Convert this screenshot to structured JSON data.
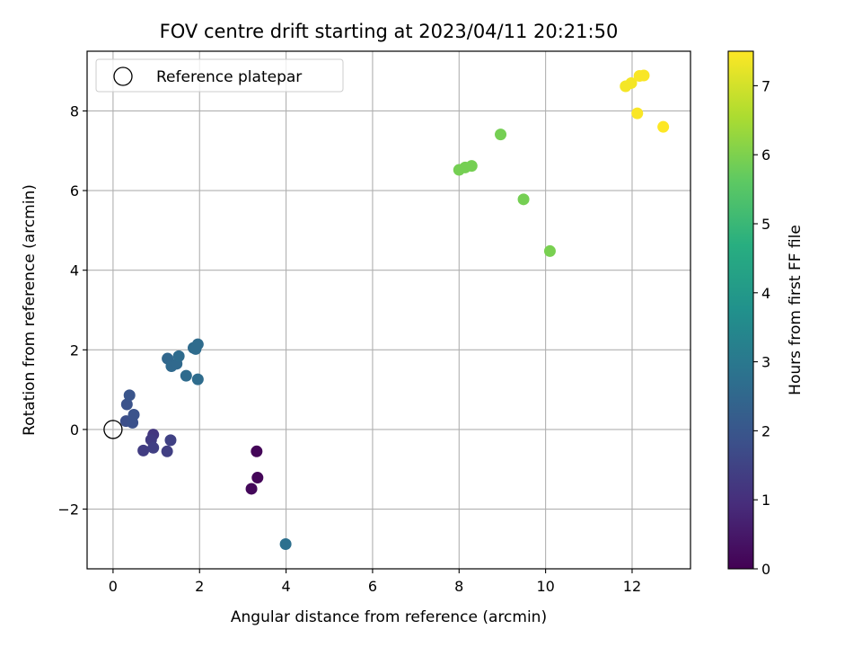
{
  "chart_data": {
    "type": "scatter",
    "title": "FOV centre drift starting at 2023/04/11 20:21:50",
    "xlabel": "Angular distance from reference (arcmin)",
    "ylabel": "Rotation from reference (arcmin)",
    "xlim": [
      -0.6,
      13.35
    ],
    "ylim": [
      -3.5,
      9.5
    ],
    "xticks": [
      0,
      2,
      4,
      6,
      8,
      10,
      12
    ],
    "yticks": [
      -2,
      0,
      2,
      4,
      6,
      8
    ],
    "xtick_labels": [
      "0",
      "2",
      "4",
      "6",
      "8",
      "10",
      "12"
    ],
    "ytick_labels": [
      "−2",
      "0",
      "2",
      "4",
      "6",
      "8"
    ],
    "grid": true,
    "legend": {
      "placement": "top-left",
      "entries": [
        "Reference platepar"
      ]
    },
    "reference_point": {
      "x": 0,
      "y": 0
    },
    "colorbar": {
      "label": "Hours from first FF file",
      "colormap": "viridis",
      "range": [
        0,
        7.5
      ],
      "ticks": [
        0,
        1,
        2,
        3,
        4,
        5,
        6,
        7
      ],
      "tick_labels": [
        "0",
        "1",
        "2",
        "3",
        "4",
        "5",
        "6",
        "7"
      ]
    },
    "points": [
      {
        "x": 3.32,
        "y": -0.55,
        "c": 0.1
      },
      {
        "x": 3.34,
        "y": -1.21,
        "c": 0.1
      },
      {
        "x": 3.2,
        "y": -1.49,
        "c": 0.15
      },
      {
        "x": 0.93,
        "y": -0.13,
        "c": 1.2
      },
      {
        "x": 0.88,
        "y": -0.26,
        "c": 1.3
      },
      {
        "x": 0.7,
        "y": -0.53,
        "c": 1.35
      },
      {
        "x": 0.93,
        "y": -0.46,
        "c": 1.4
      },
      {
        "x": 1.25,
        "y": -0.55,
        "c": 1.4
      },
      {
        "x": 1.33,
        "y": -0.27,
        "c": 1.45
      },
      {
        "x": 0.3,
        "y": 0.21,
        "c": 1.8
      },
      {
        "x": 0.45,
        "y": 0.17,
        "c": 1.85
      },
      {
        "x": 0.48,
        "y": 0.37,
        "c": 1.9
      },
      {
        "x": 0.32,
        "y": 0.63,
        "c": 1.9
      },
      {
        "x": 0.38,
        "y": 0.86,
        "c": 1.95
      },
      {
        "x": 1.26,
        "y": 1.78,
        "c": 2.5
      },
      {
        "x": 1.35,
        "y": 1.59,
        "c": 2.55
      },
      {
        "x": 1.47,
        "y": 1.65,
        "c": 2.55
      },
      {
        "x": 1.52,
        "y": 1.84,
        "c": 2.6
      },
      {
        "x": 1.69,
        "y": 1.35,
        "c": 2.6
      },
      {
        "x": 1.86,
        "y": 2.05,
        "c": 2.6
      },
      {
        "x": 1.91,
        "y": 2.02,
        "c": 2.65
      },
      {
        "x": 1.96,
        "y": 2.14,
        "c": 2.65
      },
      {
        "x": 1.96,
        "y": 1.26,
        "c": 2.65
      },
      {
        "x": 3.99,
        "y": -2.88,
        "c": 2.75
      },
      {
        "x": 8.0,
        "y": 6.52,
        "c": 5.9
      },
      {
        "x": 8.14,
        "y": 6.58,
        "c": 5.9
      },
      {
        "x": 8.29,
        "y": 6.62,
        "c": 5.9
      },
      {
        "x": 8.96,
        "y": 7.41,
        "c": 5.9
      },
      {
        "x": 9.49,
        "y": 5.78,
        "c": 5.9
      },
      {
        "x": 10.1,
        "y": 4.48,
        "c": 5.95
      },
      {
        "x": 11.85,
        "y": 8.62,
        "c": 7.4
      },
      {
        "x": 11.98,
        "y": 8.7,
        "c": 7.4
      },
      {
        "x": 12.17,
        "y": 8.88,
        "c": 7.45
      },
      {
        "x": 12.27,
        "y": 8.89,
        "c": 7.45
      },
      {
        "x": 12.12,
        "y": 7.94,
        "c": 7.45
      },
      {
        "x": 12.72,
        "y": 7.6,
        "c": 7.5
      }
    ]
  }
}
